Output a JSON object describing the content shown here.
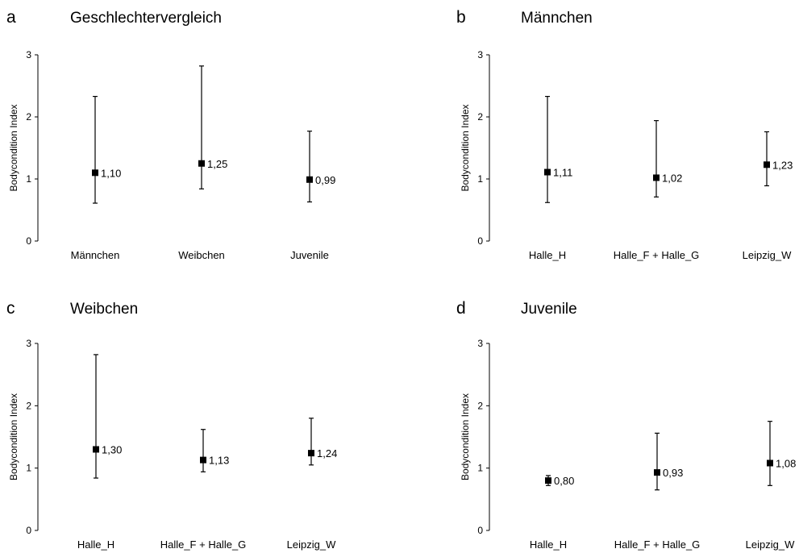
{
  "chart_data": [
    {
      "type": "scatter",
      "letter": "a",
      "title": "Geschlechtervergleich",
      "ylabel": "Bodycondition Index",
      "ylim": [
        0,
        3
      ],
      "yticks": [
        "0",
        "1",
        "2",
        "3"
      ],
      "categories": [
        "Männchen",
        "Weibchen",
        "Juvenile"
      ],
      "points": [
        {
          "value": 1.1,
          "label": "1,10",
          "low": 0.61,
          "high": 2.33
        },
        {
          "value": 1.25,
          "label": "1,25",
          "low": 0.84,
          "high": 2.82
        },
        {
          "value": 0.99,
          "label": "0,99",
          "low": 0.63,
          "high": 1.77
        }
      ]
    },
    {
      "type": "scatter",
      "letter": "b",
      "title": "Männchen",
      "ylabel": "Bodycondition Index",
      "ylim": [
        0,
        3
      ],
      "yticks": [
        "0",
        "1",
        "2",
        "3"
      ],
      "categories": [
        "Halle_H",
        "Halle_F + Halle_G",
        "Leipzig_W"
      ],
      "points": [
        {
          "value": 1.11,
          "label": "1,11",
          "low": 0.62,
          "high": 2.33
        },
        {
          "value": 1.02,
          "label": "1,02",
          "low": 0.71,
          "high": 1.94
        },
        {
          "value": 1.23,
          "label": "1,23",
          "low": 0.89,
          "high": 1.76
        }
      ]
    },
    {
      "type": "scatter",
      "letter": "c",
      "title": "Weibchen",
      "ylabel": "Bodycondition Index",
      "ylim": [
        0,
        3
      ],
      "yticks": [
        "0",
        "1",
        "2",
        "3"
      ],
      "categories": [
        "Halle_H",
        "Halle_F + Halle_G",
        "Leipzig_W"
      ],
      "points": [
        {
          "value": 1.3,
          "label": "1,30",
          "low": 0.84,
          "high": 2.82
        },
        {
          "value": 1.13,
          "label": "1,13",
          "low": 0.94,
          "high": 1.62
        },
        {
          "value": 1.24,
          "label": "1,24",
          "low": 1.05,
          "high": 1.8
        }
      ]
    },
    {
      "type": "scatter",
      "letter": "d",
      "title": "Juvenile",
      "ylabel": "Bodycondition Index",
      "ylim": [
        0,
        3
      ],
      "yticks": [
        "0",
        "1",
        "2",
        "3"
      ],
      "categories": [
        "Halle_H",
        "Halle_F + Halle_G",
        "Leipzig_W"
      ],
      "points": [
        {
          "value": 0.8,
          "label": "0,80",
          "low": 0.72,
          "high": 0.88
        },
        {
          "value": 0.93,
          "label": "0,93",
          "low": 0.65,
          "high": 1.56
        },
        {
          "value": 1.08,
          "label": "1,08",
          "low": 0.72,
          "high": 1.75
        }
      ]
    }
  ]
}
